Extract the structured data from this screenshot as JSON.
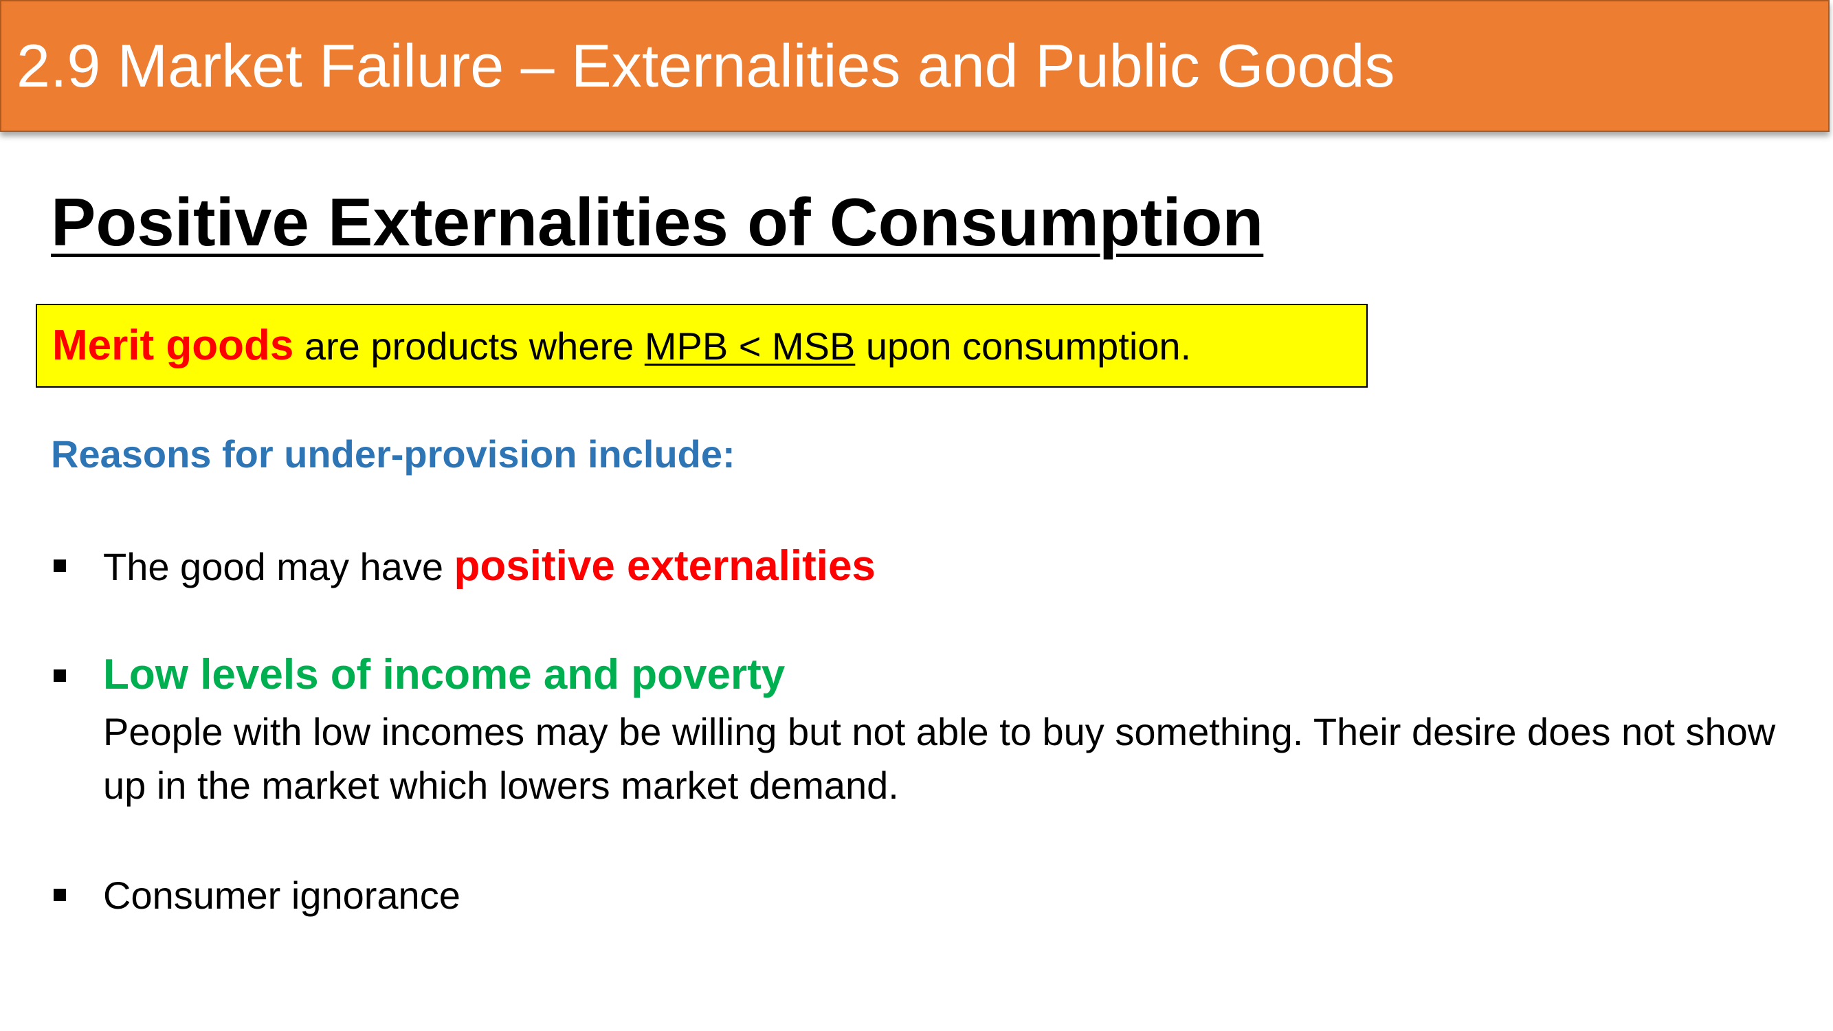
{
  "header": {
    "title": "2.9 Market Failure – Externalities and Public Goods",
    "color": "#ed7d31"
  },
  "section_heading": "Positive Externalities of Consumption",
  "definition": {
    "term": "Merit goods",
    "text_before": " are products where ",
    "underlined": "MPB < MSB",
    "text_after": " upon consumption.",
    "box_color": "#ffff00"
  },
  "reasons_heading": "Reasons for under-provision include:",
  "bullets": [
    {
      "prefix": "The good may have ",
      "emphasis": "positive externalities"
    },
    {
      "emphasis": "Low levels of income and poverty",
      "detail": "People with low incomes may be willing but not able to buy something. Their desire does not show up in the market which lowers market demand."
    },
    {
      "text": "Consumer ignorance"
    }
  ]
}
